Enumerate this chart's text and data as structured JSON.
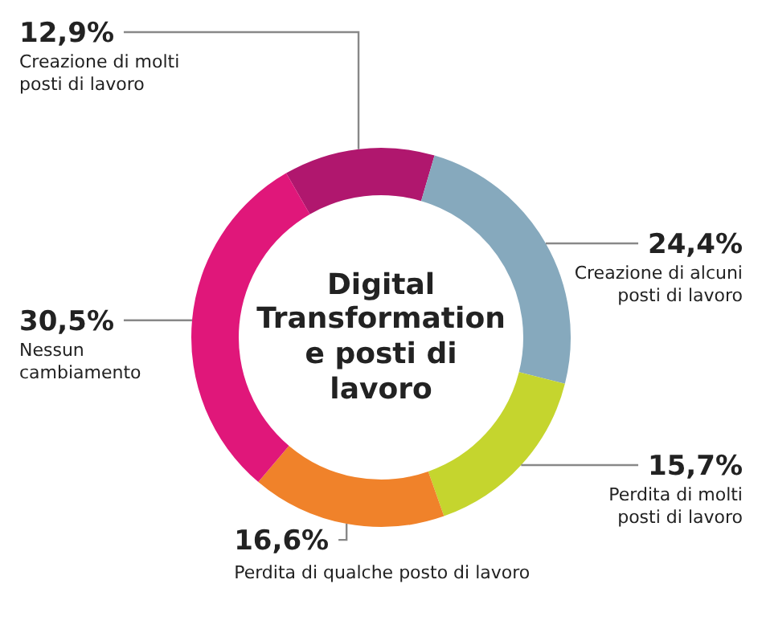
{
  "chart_data": {
    "type": "donut",
    "title": "Digital Transformation e posti di lavoro",
    "categories": [
      "Creazione di molti posti di lavoro",
      "Creazione di alcuni posti di lavoro",
      "Perdita di molti posti di lavoro",
      "Perdita di qualche posto di lavoro",
      "Nessun cambiamento"
    ],
    "values": [
      12.9,
      24.4,
      15.7,
      16.6,
      30.5
    ],
    "value_labels": [
      "12,9%",
      "24,4%",
      "15,7%",
      "16,6%",
      "30,5%"
    ],
    "colors": [
      "#b0176e",
      "#86a9bd",
      "#c5d52e",
      "#f0822a",
      "#e0177a"
    ],
    "legend": false
  }
}
